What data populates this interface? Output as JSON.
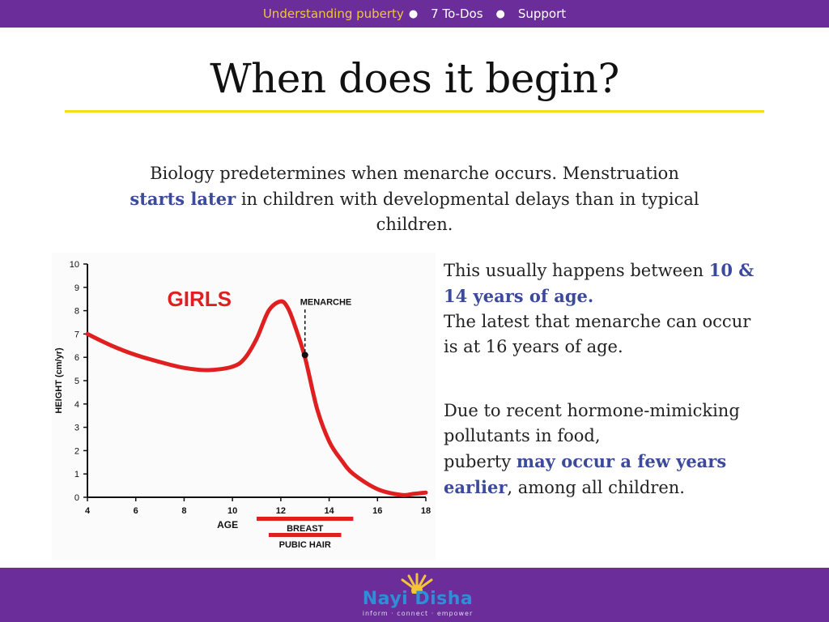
{
  "nav": {
    "items": [
      {
        "label": "Understanding puberty",
        "active": true
      },
      {
        "label": "7 To-Dos",
        "active": false
      },
      {
        "label": "Support",
        "active": false
      }
    ],
    "separator": "●"
  },
  "slide": {
    "title": "When does it begin?",
    "intro": {
      "part1": "Biology predetermines when menarche occurs. Menstruation ",
      "highlight": "starts later",
      "part2": " in children with developmental delays than in typical children."
    },
    "side_a": {
      "part1": "This usually happens between ",
      "highlight": "10 & 14 years of age.",
      "part2": "The latest that menarche can occur is at 16 years of age."
    },
    "side_b": {
      "part1": "Due to recent hormone-mimicking pollutants in food,",
      "part2": "puberty ",
      "highlight": "may occur a few years earlier",
      "part3": ", among all children."
    }
  },
  "colors": {
    "brand_purple": "#6a2d99",
    "nav_active": "#f2c53a",
    "title_rule": "#f3dd1d",
    "highlight_text": "#3b4a9a",
    "curve_red": "#e02020",
    "girls_label": "#e02020"
  },
  "chart_data": {
    "type": "line",
    "title": "GIRLS",
    "xlabel": "AGE",
    "ylabel": "HEIGHT (cm/yr)",
    "xlim": [
      4,
      18
    ],
    "ylim": [
      0,
      10
    ],
    "x_ticks": [
      "4",
      "6",
      "8",
      "10",
      "12",
      "14",
      "16",
      "18"
    ],
    "y_ticks": [
      "0",
      "1",
      "2",
      "3",
      "4",
      "5",
      "6",
      "7",
      "8",
      "9",
      "10"
    ],
    "series": [
      {
        "x": [
          4,
          5,
          6,
          7,
          8,
          9,
          10,
          10.5,
          11,
          11.5,
          12,
          12.3,
          12.6,
          13,
          13.5,
          14,
          14.5,
          15,
          16,
          17,
          17.5,
          18
        ],
        "y": [
          7.0,
          6.5,
          6.1,
          5.8,
          5.55,
          5.45,
          5.6,
          5.95,
          6.8,
          8.0,
          8.4,
          8.1,
          7.3,
          6.0,
          3.8,
          2.4,
          1.6,
          1.0,
          0.35,
          0.1,
          0.15,
          0.2
        ]
      }
    ],
    "annotations": [
      {
        "label": "MENARCHE",
        "x": 13,
        "y": 6.1
      }
    ],
    "bars": [
      {
        "label": "BREAST",
        "start": 11,
        "end": 15
      },
      {
        "label": "PUBIC HAIR",
        "start": 11.5,
        "end": 14.5
      }
    ]
  },
  "footer": {
    "logo_name": "Nayi Disha",
    "tagline": "inform · connect · empower",
    "logo_icon": "sun-icon"
  }
}
